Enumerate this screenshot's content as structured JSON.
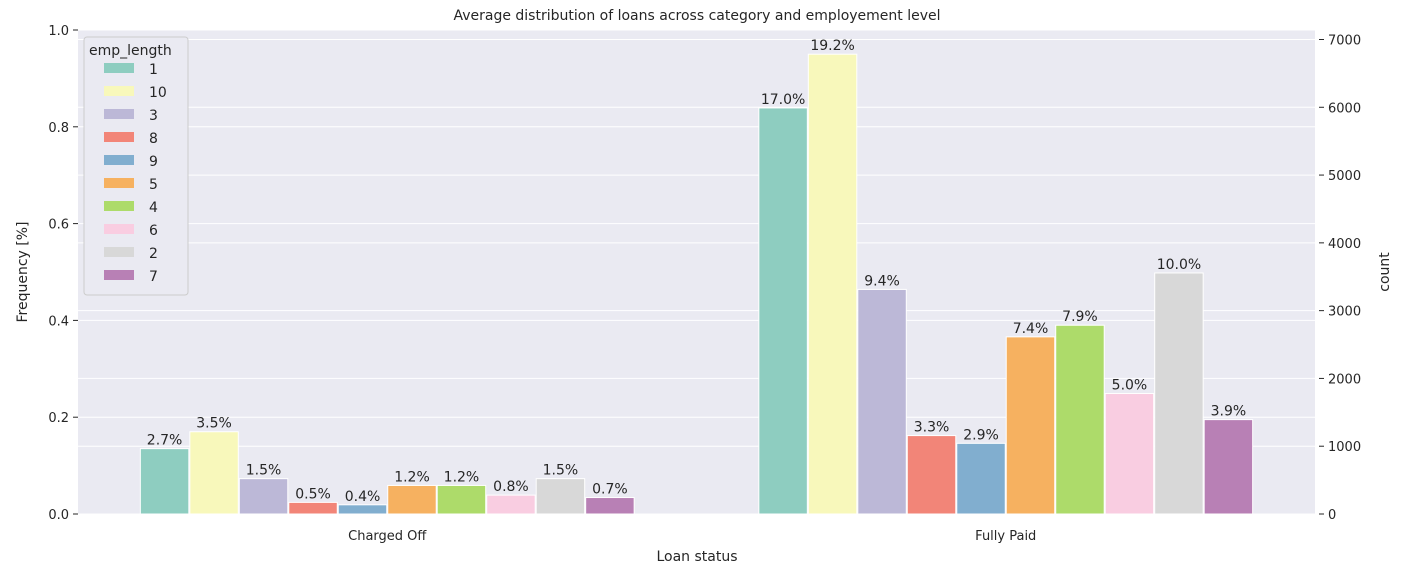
{
  "chart_data": {
    "type": "bar",
    "title": "Average distribution of loans across category and employement level",
    "xlabel": "Loan status",
    "ylabel": "Frequency [%]",
    "ylabel_right": "count",
    "categories": [
      "Charged Off",
      "Fully Paid"
    ],
    "ylim": [
      0,
      1.0
    ],
    "ylim_right": [
      0,
      7140
    ],
    "yticks": [
      "0.0",
      "0.2",
      "0.4",
      "0.6",
      "0.8",
      "1.0"
    ],
    "yticks_right": [
      "0",
      "1000",
      "2000",
      "3000",
      "4000",
      "5000",
      "6000",
      "7000"
    ],
    "grid": true,
    "legend_title": "emp_length",
    "legend_position": "top-left",
    "series": [
      {
        "name": "1",
        "color": "#8ecdc0",
        "values": [
          0.135,
          0.839
        ],
        "labels": [
          "2.7%",
          "17.0%"
        ]
      },
      {
        "name": "10",
        "color": "#f8f8bb",
        "values": [
          0.17,
          0.95
        ],
        "labels": [
          "3.5%",
          "19.2%"
        ]
      },
      {
        "name": "3",
        "color": "#bcb8d7",
        "values": [
          0.073,
          0.464
        ],
        "labels": [
          "1.5%",
          "9.4%"
        ]
      },
      {
        "name": "8",
        "color": "#f28578",
        "values": [
          0.024,
          0.162
        ],
        "labels": [
          "0.5%",
          "3.3%"
        ]
      },
      {
        "name": "9",
        "color": "#81aecf",
        "values": [
          0.019,
          0.146
        ],
        "labels": [
          "0.4%",
          "2.9%"
        ]
      },
      {
        "name": "5",
        "color": "#f6b160",
        "values": [
          0.059,
          0.366
        ],
        "labels": [
          "1.2%",
          "7.4%"
        ]
      },
      {
        "name": "4",
        "color": "#addb6a",
        "values": [
          0.059,
          0.39
        ],
        "labels": [
          "1.2%",
          "7.9%"
        ]
      },
      {
        "name": "6",
        "color": "#f9cde1",
        "values": [
          0.039,
          0.249
        ],
        "labels": [
          "0.8%",
          "5.0%"
        ]
      },
      {
        "name": "2",
        "color": "#d8d8d8",
        "values": [
          0.073,
          0.498
        ],
        "labels": [
          "1.5%",
          "10.0%"
        ]
      },
      {
        "name": "7",
        "color": "#b880b5",
        "values": [
          0.034,
          0.195
        ],
        "labels": [
          "0.7%",
          "3.9%"
        ]
      }
    ]
  }
}
